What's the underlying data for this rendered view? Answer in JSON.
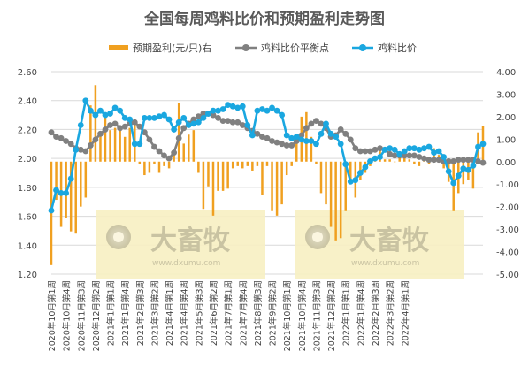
{
  "chart_data": {
    "type": "bar+line",
    "title": "全国每周鸡料比价和预期盈利走势图",
    "legend": [
      {
        "name": "预期盈利(元/只)右",
        "color": "#f0a020",
        "kind": "bar"
      },
      {
        "name": "鸡料比价平衡点",
        "color": "#808080",
        "kind": "line"
      },
      {
        "name": "鸡料比价",
        "color": "#1aa7e0",
        "kind": "line"
      }
    ],
    "legend_position": "top",
    "left_axis": {
      "min": 1.2,
      "max": 2.6,
      "ticks": [
        "1.20",
        "1.40",
        "1.60",
        "1.80",
        "2.00",
        "2.20",
        "2.40",
        "2.60"
      ]
    },
    "right_axis": {
      "min": -5.0,
      "max": 4.0,
      "ticks": [
        "-5.00",
        "-4.00",
        "-3.00",
        "-2.00",
        "-1.00",
        "0.00",
        "1.00",
        "2.00",
        "3.00",
        "4.00"
      ]
    },
    "grid": "horizontal",
    "x_tick_labels": [
      "2020年10月第1周",
      "2020年10月第4周",
      "2020年11月第3周",
      "2020年12月第2周",
      "2021年1月第1周",
      "2021年1月第4周",
      "2021年2月第3周",
      "2021年3月第2周",
      "2021年4月第1周",
      "2021年4月第4周",
      "2021年5月第3周",
      "2021年6月第2周",
      "2021年7月第1周",
      "2021年7月第4周",
      "2021年8月第3周",
      "2021年9月第2周",
      "2021年10月第1周",
      "2021年10月第4周",
      "2021年11月第3周",
      "2021年12月第2周",
      "2022年1月第1周",
      "2022年1月第4周",
      "2022年2月第3周",
      "2022年3月第2周",
      "2022年4月第1周"
    ],
    "x_tick_every": 3,
    "series": [
      {
        "name": "预期盈利(元/只)右",
        "axis": "right",
        "values": [
          -4.6,
          -1.7,
          -2.9,
          -2.5,
          -3.1,
          -3.2,
          -2.0,
          -1.6,
          2.5,
          3.4,
          1.3,
          2.0,
          1.4,
          1.5,
          1.6,
          1.1,
          1.5,
          1.9,
          -0.1,
          -0.6,
          -0.5,
          -0.1,
          -0.5,
          -0.2,
          -0.3,
          0.4,
          2.6,
          0.8,
          1.2,
          1.4,
          -0.5,
          -2.1,
          -1.1,
          -2.4,
          -1.3,
          -1.3,
          -1.2,
          -0.3,
          -0.2,
          -0.3,
          -0.2,
          -0.4,
          -0.2,
          -1.5,
          -0.2,
          -2.2,
          -2.4,
          -1.9,
          -0.6,
          -0.2,
          0.8,
          2.0,
          2.2,
          1.1,
          -0.1,
          -1.4,
          -1.9,
          -2.9,
          -3.5,
          -3.4,
          -2.2,
          -0.9,
          -1.6,
          -0.8,
          -0.5,
          -0.2,
          0.2,
          0.7,
          0.1,
          0.1,
          0.0,
          0.4,
          0.3,
          0.1,
          -0.1,
          -0.2,
          0.1,
          -0.1,
          0.6,
          0.3,
          -0.3,
          -0.9,
          -2.2,
          -1.4,
          -1.0,
          -0.8,
          -1.2,
          1.3,
          1.6
        ]
      },
      {
        "name": "鸡料比价平衡点",
        "axis": "left",
        "values": [
          2.18,
          2.15,
          2.14,
          2.12,
          2.1,
          2.07,
          2.06,
          2.05,
          2.09,
          2.13,
          2.17,
          2.2,
          2.23,
          2.24,
          2.21,
          2.22,
          2.24,
          2.25,
          2.22,
          2.18,
          2.13,
          2.08,
          2.05,
          2.02,
          2.0,
          2.04,
          2.14,
          2.21,
          2.24,
          2.27,
          2.29,
          2.31,
          2.31,
          2.3,
          2.28,
          2.26,
          2.26,
          2.25,
          2.25,
          2.23,
          2.21,
          2.19,
          2.17,
          2.15,
          2.14,
          2.12,
          2.11,
          2.1,
          2.09,
          2.09,
          2.12,
          2.16,
          2.21,
          2.24,
          2.26,
          2.24,
          2.21,
          2.15,
          2.16,
          2.2,
          2.17,
          2.13,
          2.07,
          2.05,
          2.05,
          2.05,
          2.06,
          2.07,
          2.06,
          2.03,
          2.02,
          2.02,
          2.02,
          2.02,
          2.02,
          2.01,
          2.0,
          1.99,
          1.99,
          1.99,
          1.98,
          1.98,
          1.98,
          1.99,
          1.99,
          1.99,
          1.99,
          1.98,
          1.97
        ]
      },
      {
        "name": "鸡料比价",
        "axis": "left",
        "values": [
          1.64,
          1.78,
          1.76,
          1.76,
          1.86,
          2.06,
          2.23,
          2.4,
          2.33,
          2.3,
          2.33,
          2.3,
          2.31,
          2.35,
          2.33,
          2.28,
          2.27,
          2.1,
          2.1,
          2.28,
          2.28,
          2.28,
          2.29,
          2.3,
          2.27,
          2.2,
          2.25,
          2.28,
          2.23,
          2.24,
          2.25,
          2.28,
          2.31,
          2.33,
          2.33,
          2.34,
          2.37,
          2.36,
          2.35,
          2.36,
          2.23,
          2.16,
          2.33,
          2.34,
          2.33,
          2.35,
          2.33,
          2.3,
          2.16,
          2.14,
          2.15,
          2.13,
          2.12,
          2.12,
          2.1,
          2.17,
          2.24,
          2.17,
          2.15,
          2.1,
          1.96,
          1.84,
          1.85,
          1.9,
          1.94,
          1.98,
          2.0,
          2.01,
          2.06,
          2.07,
          2.06,
          2.03,
          2.05,
          2.07,
          2.07,
          2.06,
          2.07,
          2.08,
          2.04,
          2.05,
          2.01,
          1.91,
          1.83,
          1.88,
          1.93,
          1.92,
          1.95,
          2.08,
          2.1
        ]
      }
    ],
    "watermark": {
      "text": "大畜牧",
      "sub": "www.dxumu.com"
    }
  }
}
